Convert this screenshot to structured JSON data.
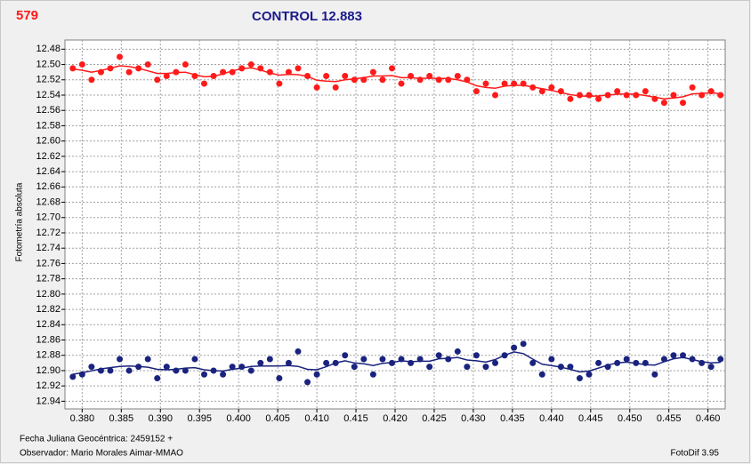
{
  "chart_data": {
    "type": "scatter",
    "star": "579",
    "title": "CONTROL 12.883",
    "y_label": "Fotometría absoluta",
    "x_label": "Fecha Juliana Geocéntrica: 2459152 +",
    "observer": "Observador: Mario Morales Aimar-MMAO",
    "software": "FotoDif 3.95",
    "grid": true,
    "smooth_line": true,
    "xlim": [
      0.3778,
      0.4622
    ],
    "ylim": [
      12.95,
      12.468
    ],
    "xticks": [
      {
        "value": 0.38,
        "label": "0.380"
      },
      {
        "value": 0.385,
        "label": "0.385"
      },
      {
        "value": 0.39,
        "label": "0.390"
      },
      {
        "value": 0.395,
        "label": "0.395"
      },
      {
        "value": 0.4,
        "label": "0.400"
      },
      {
        "value": 0.405,
        "label": "0.405"
      },
      {
        "value": 0.41,
        "label": "0.410"
      },
      {
        "value": 0.415,
        "label": "0.415"
      },
      {
        "value": 0.42,
        "label": "0.420"
      },
      {
        "value": 0.425,
        "label": "0.425"
      },
      {
        "value": 0.43,
        "label": "0.430"
      },
      {
        "value": 0.435,
        "label": "0.435"
      },
      {
        "value": 0.44,
        "label": "0.440"
      },
      {
        "value": 0.445,
        "label": "0.445"
      },
      {
        "value": 0.45,
        "label": "0.450"
      },
      {
        "value": 0.455,
        "label": "0.455"
      },
      {
        "value": 0.46,
        "label": "0.460"
      }
    ],
    "yticks": [
      {
        "value": 12.48,
        "label": "12.48"
      },
      {
        "value": 12.5,
        "label": "12.50"
      },
      {
        "value": 12.52,
        "label": "12.52"
      },
      {
        "value": 12.54,
        "label": "12.54"
      },
      {
        "value": 12.56,
        "label": "12.56"
      },
      {
        "value": 12.58,
        "label": "12.58"
      },
      {
        "value": 12.6,
        "label": "12.60"
      },
      {
        "value": 12.62,
        "label": "12.62"
      },
      {
        "value": 12.64,
        "label": "12.64"
      },
      {
        "value": 12.66,
        "label": "12.66"
      },
      {
        "value": 12.68,
        "label": "12.68"
      },
      {
        "value": 12.7,
        "label": "12.70"
      },
      {
        "value": 12.72,
        "label": "12.72"
      },
      {
        "value": 12.74,
        "label": "12.74"
      },
      {
        "value": 12.76,
        "label": "12.76"
      },
      {
        "value": 12.78,
        "label": "12.78"
      },
      {
        "value": 12.8,
        "label": "12.80"
      },
      {
        "value": 12.82,
        "label": "12.82"
      },
      {
        "value": 12.84,
        "label": "12.84"
      },
      {
        "value": 12.86,
        "label": "12.86"
      },
      {
        "value": 12.88,
        "label": "12.88"
      },
      {
        "value": 12.9,
        "label": "12.90"
      },
      {
        "value": 12.92,
        "label": "12.92"
      },
      {
        "value": 12.94,
        "label": "12.94"
      }
    ],
    "x": [
      0.3788,
      0.38,
      0.3812,
      0.3824,
      0.3836,
      0.3848,
      0.386,
      0.3872,
      0.3884,
      0.3896,
      0.3908,
      0.392,
      0.3932,
      0.3944,
      0.3956,
      0.3968,
      0.398,
      0.3992,
      0.4004,
      0.4016,
      0.4028,
      0.404,
      0.4052,
      0.4064,
      0.4076,
      0.4088,
      0.41,
      0.4112,
      0.4124,
      0.4136,
      0.4148,
      0.416,
      0.4172,
      0.4184,
      0.4196,
      0.4208,
      0.422,
      0.4232,
      0.4244,
      0.4256,
      0.4268,
      0.428,
      0.4292,
      0.4304,
      0.4316,
      0.4328,
      0.434,
      0.4352,
      0.4364,
      0.4376,
      0.4388,
      0.44,
      0.4412,
      0.4424,
      0.4436,
      0.4448,
      0.446,
      0.4472,
      0.4484,
      0.4496,
      0.4508,
      0.452,
      0.4532,
      0.4544,
      0.4556,
      0.4568,
      0.458,
      0.4592,
      0.4604,
      0.4616
    ],
    "series": [
      {
        "color": "#ff1a1a",
        "values": [
          12.505,
          12.5,
          12.52,
          12.51,
          12.505,
          12.49,
          12.51,
          12.505,
          12.5,
          12.52,
          12.515,
          12.51,
          12.5,
          12.515,
          12.525,
          12.515,
          12.51,
          12.51,
          12.505,
          12.5,
          12.505,
          12.51,
          12.525,
          12.51,
          12.505,
          12.515,
          12.53,
          12.515,
          12.53,
          12.515,
          12.52,
          12.52,
          12.51,
          12.52,
          12.505,
          12.525,
          12.515,
          12.52,
          12.515,
          12.52,
          12.52,
          12.515,
          12.52,
          12.535,
          12.525,
          12.54,
          12.525,
          12.525,
          12.525,
          12.53,
          12.535,
          12.53,
          12.535,
          12.545,
          12.54,
          12.54,
          12.545,
          12.54,
          12.535,
          12.54,
          12.54,
          12.535,
          12.545,
          12.55,
          12.54,
          12.55,
          12.53,
          12.54,
          12.535,
          12.54
        ]
      },
      {
        "color": "#1a237e",
        "values": [
          12.908,
          12.905,
          12.895,
          12.9,
          12.9,
          12.885,
          12.9,
          12.895,
          12.885,
          12.91,
          12.895,
          12.9,
          12.9,
          12.885,
          12.905,
          12.9,
          12.905,
          12.895,
          12.895,
          12.9,
          12.89,
          12.885,
          12.91,
          12.89,
          12.875,
          12.915,
          12.905,
          12.89,
          12.89,
          12.88,
          12.895,
          12.885,
          12.905,
          12.885,
          12.89,
          12.885,
          12.89,
          12.885,
          12.895,
          12.88,
          12.885,
          12.875,
          12.895,
          12.88,
          12.895,
          12.89,
          12.88,
          12.87,
          12.865,
          12.89,
          12.905,
          12.885,
          12.895,
          12.895,
          12.91,
          12.905,
          12.89,
          12.895,
          12.89,
          12.885,
          12.89,
          12.89,
          12.905,
          12.885,
          12.88,
          12.88,
          12.885,
          12.89,
          12.895,
          12.885
        ]
      }
    ]
  }
}
